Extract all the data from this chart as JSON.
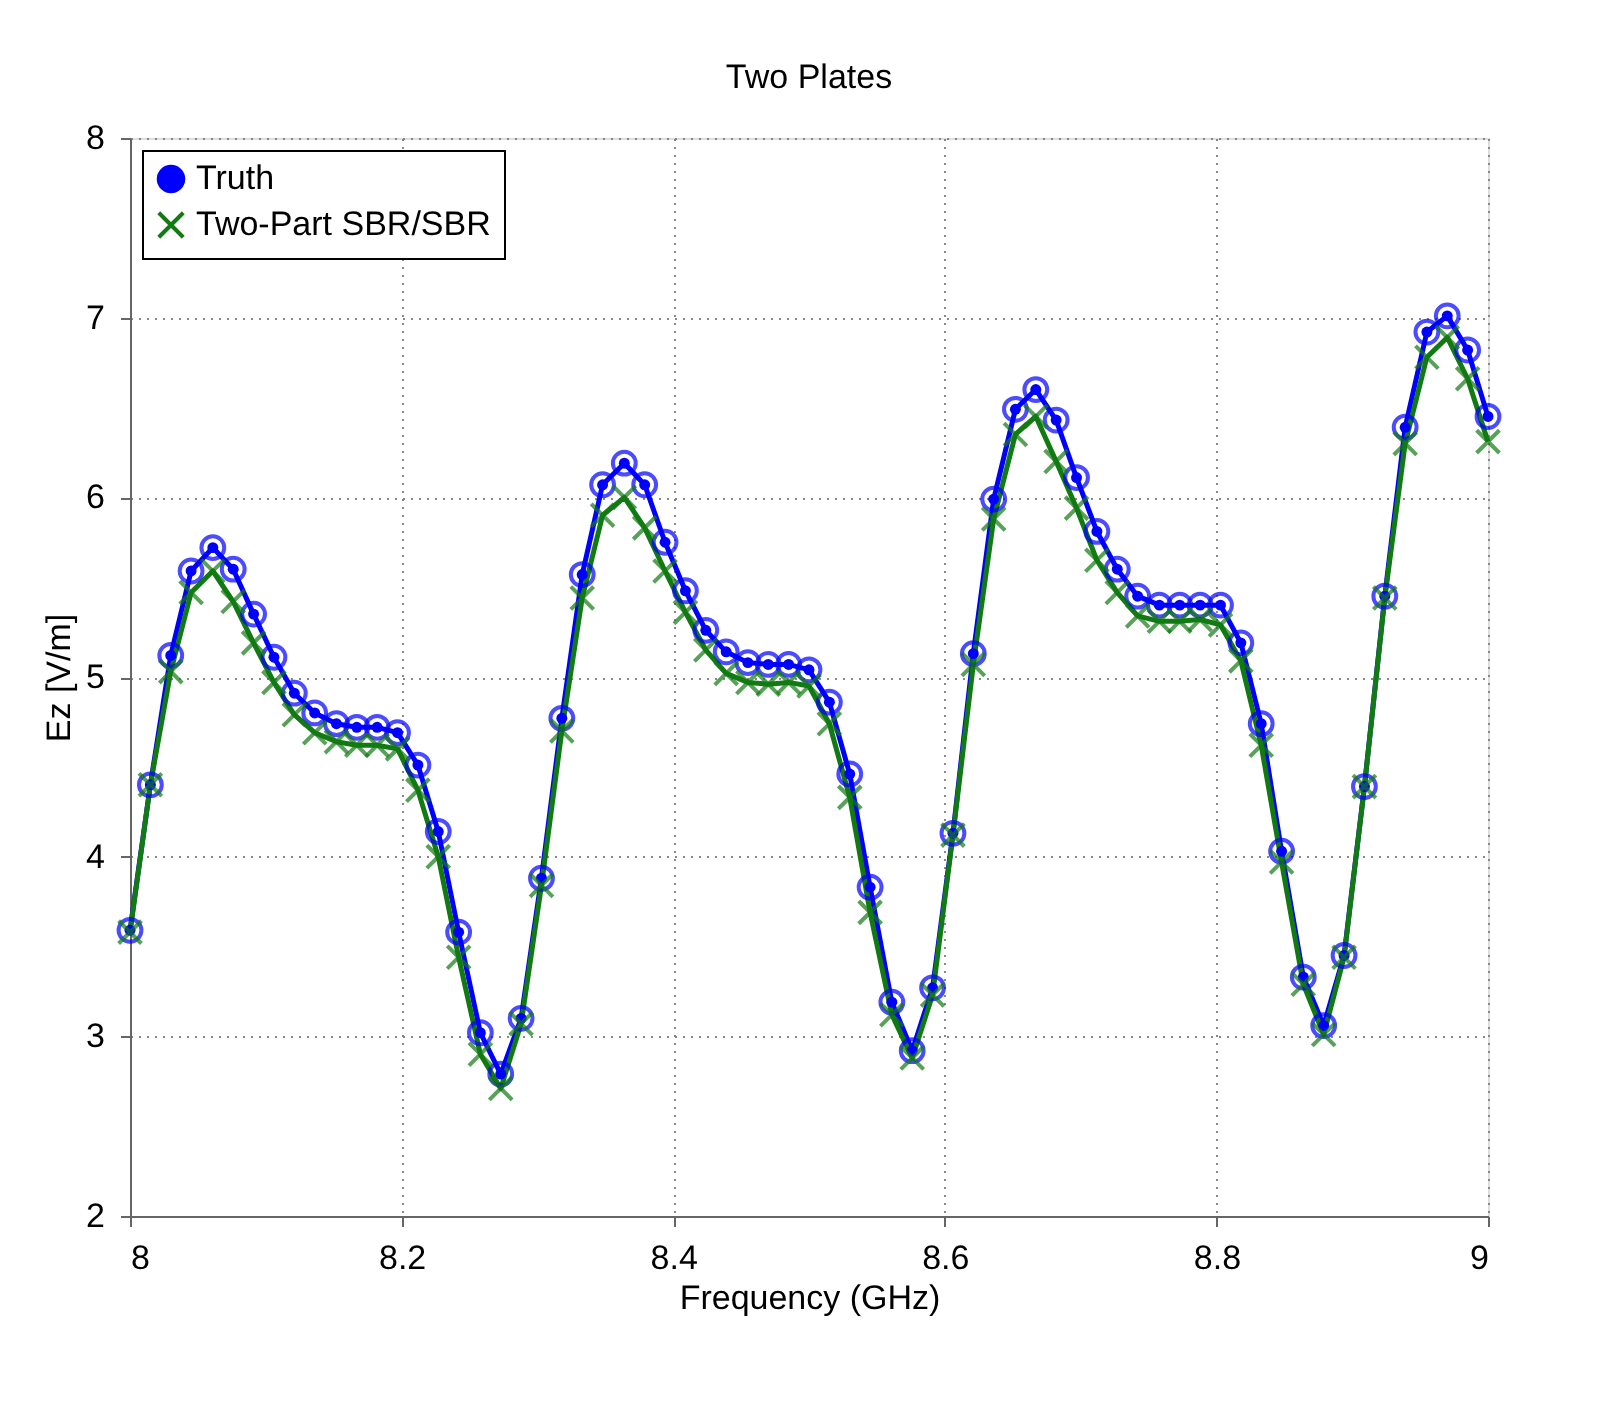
{
  "chart_data": {
    "type": "line",
    "title": "Two Plates",
    "xlabel": "Frequency (GHz)",
    "ylabel": "Ez [V/m]",
    "x": [
      8.0,
      8.015,
      8.03,
      8.045,
      8.061,
      8.076,
      8.091,
      8.106,
      8.121,
      8.136,
      8.152,
      8.167,
      8.182,
      8.197,
      8.212,
      8.227,
      8.242,
      8.258,
      8.273,
      8.288,
      8.303,
      8.318,
      8.333,
      8.348,
      8.364,
      8.379,
      8.394,
      8.409,
      8.424,
      8.439,
      8.455,
      8.47,
      8.485,
      8.5,
      8.515,
      8.53,
      8.545,
      8.561,
      8.576,
      8.591,
      8.606,
      8.621,
      8.636,
      8.652,
      8.667,
      8.682,
      8.697,
      8.712,
      8.727,
      8.742,
      8.758,
      8.773,
      8.788,
      8.803,
      8.818,
      8.833,
      8.848,
      8.864,
      8.879,
      8.894,
      8.909,
      8.924,
      8.939,
      8.955,
      8.97,
      8.985,
      9.0
    ],
    "series": [
      {
        "name": "Truth",
        "color": "#0000ff",
        "marker": "circle",
        "values": [
          3.59,
          4.4,
          5.12,
          5.59,
          5.72,
          5.6,
          5.35,
          5.11,
          4.91,
          4.8,
          4.74,
          4.72,
          4.72,
          4.69,
          4.51,
          4.14,
          3.58,
          3.02,
          2.79,
          3.1,
          3.88,
          4.77,
          5.57,
          6.07,
          6.19,
          6.07,
          5.75,
          5.48,
          5.26,
          5.14,
          5.08,
          5.07,
          5.07,
          5.04,
          4.86,
          4.46,
          3.83,
          3.19,
          2.92,
          3.27,
          4.13,
          5.13,
          5.99,
          6.49,
          6.6,
          6.43,
          6.11,
          5.81,
          5.6,
          5.45,
          5.4,
          5.4,
          5.4,
          5.4,
          5.19,
          4.74,
          4.03,
          3.33,
          3.06,
          3.45,
          4.39,
          5.45,
          6.39,
          6.92,
          7.01,
          6.82,
          6.45
        ]
      },
      {
        "name": "Two-Part SBR/SBR",
        "color": "#127a12",
        "marker": "cross",
        "values": [
          3.58,
          4.4,
          5.03,
          5.47,
          5.59,
          5.42,
          5.19,
          4.97,
          4.79,
          4.69,
          4.64,
          4.62,
          4.62,
          4.6,
          4.37,
          4.0,
          3.44,
          2.9,
          2.71,
          3.07,
          3.84,
          4.7,
          5.44,
          5.9,
          6.0,
          5.83,
          5.59,
          5.36,
          5.15,
          5.02,
          4.97,
          4.96,
          4.97,
          4.95,
          4.74,
          4.33,
          3.69,
          3.12,
          2.88,
          3.23,
          4.12,
          5.07,
          5.88,
          6.35,
          6.45,
          6.2,
          5.94,
          5.65,
          5.47,
          5.34,
          5.31,
          5.31,
          5.32,
          5.29,
          5.09,
          4.62,
          3.97,
          3.29,
          3.01,
          3.44,
          4.39,
          5.44,
          6.3,
          6.78,
          6.89,
          6.66,
          6.31
        ]
      }
    ],
    "xlim": [
      8,
      9
    ],
    "xticks": [
      8,
      8.2,
      8.4,
      8.6,
      8.8,
      9
    ],
    "ylim": [
      2,
      8
    ],
    "yticks": [
      2,
      3,
      4,
      5,
      6,
      7,
      8
    ],
    "grid": true,
    "legend": "top left",
    "line_style": "solid"
  }
}
